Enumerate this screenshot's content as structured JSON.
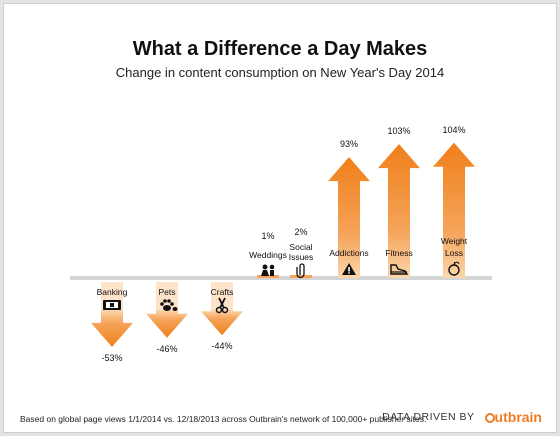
{
  "chart_data": {
    "type": "bar",
    "title": "What a Difference a Day Makes",
    "subtitle": "Change in content consumption on New Year's Day 2014",
    "categories": [
      "Banking",
      "Pets",
      "Crafts",
      "Weddings",
      "Social Issues",
      "Addictions",
      "Fitness",
      "Weight Loss"
    ],
    "values": [
      -53,
      -46,
      -44,
      1,
      2,
      93,
      103,
      104
    ],
    "value_labels": [
      "-53%",
      "-46%",
      "-44%",
      "1%",
      "2%",
      "93%",
      "103%",
      "104%"
    ],
    "icons": [
      "wallet-icon",
      "paw-icon",
      "scissors-icon",
      "couple-icon",
      "paperclip-icon",
      "warning-icon",
      "sneaker-icon",
      "apple-icon"
    ],
    "ylim": [
      -60,
      110
    ],
    "grid": false,
    "colors": {
      "arrow": "#f08a2a",
      "arrow_light": "#fbd0a4",
      "baseline": "#d0d0d0"
    }
  },
  "footer": {
    "note": "Based on global page views 1/1/2014 vs. 12/18/2013 across Outbrain's network of 100,000+ publisher sites.",
    "credit": "DATA DRIVEN BY",
    "brand": "utbrain"
  }
}
